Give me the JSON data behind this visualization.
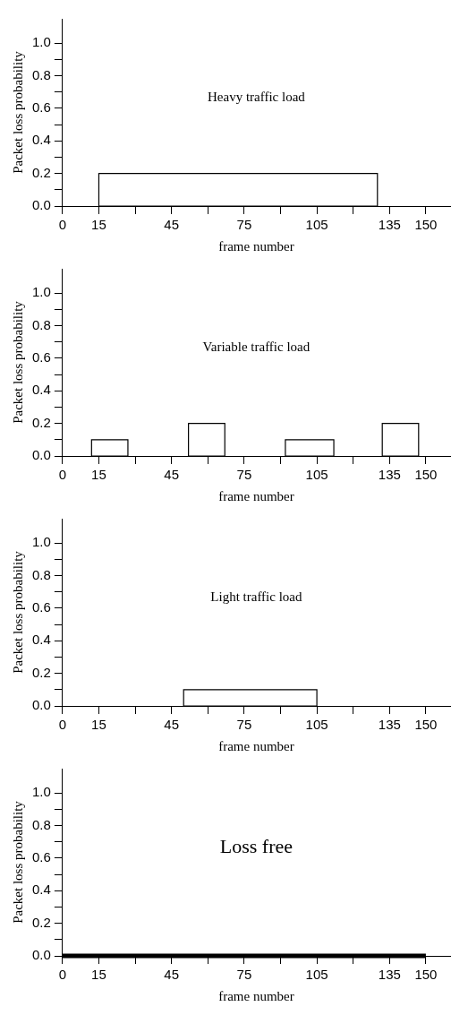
{
  "chart_data": [
    {
      "type": "histogram",
      "title": "Heavy traffic load",
      "xlabel": "frame number",
      "ylabel": "Packet loss probability",
      "color": "#000000",
      "bins": [
        15,
        130
      ],
      "values": [
        0.2
      ],
      "xlim": [
        0,
        160
      ],
      "xticks": [
        0,
        15,
        {
          "value": 30,
          "label": null
        },
        45,
        {
          "value": 60,
          "label": null
        },
        75,
        {
          "value": 90,
          "label": null
        },
        105,
        {
          "value": 120,
          "label": null
        },
        135,
        150
      ],
      "ylim": [
        0,
        1.15
      ],
      "yticks": [
        {
          "value": 0,
          "label": "0.0"
        },
        {
          "value": 0.1,
          "label": null
        },
        {
          "value": 0.2,
          "label": "0.2"
        },
        {
          "value": 0.3,
          "label": null
        },
        {
          "value": 0.4,
          "label": "0.4"
        },
        {
          "value": 0.5,
          "label": null
        },
        {
          "value": 0.6,
          "label": "0.6"
        },
        {
          "value": 0.7,
          "label": null
        },
        {
          "value": 0.8,
          "label": "0.8"
        },
        {
          "value": 0.9,
          "label": null
        },
        {
          "value": 1,
          "label": "1.0"
        }
      ],
      "grid": false,
      "legend": false
    },
    {
      "type": "histogram",
      "title": "Variable traffic load",
      "xlabel": "frame number",
      "ylabel": "Packet loss probability",
      "color": "#000000",
      "bins": [
        12,
        27,
        52,
        67,
        92,
        112,
        132,
        147
      ],
      "values": [
        0.1,
        0,
        0.2,
        0,
        0.1,
        0,
        0.2
      ],
      "xlim": [
        0,
        160
      ],
      "xticks": [
        0,
        15,
        {
          "value": 30,
          "label": null
        },
        45,
        {
          "value": 60,
          "label": null
        },
        75,
        {
          "value": 90,
          "label": null
        },
        105,
        {
          "value": 120,
          "label": null
        },
        135,
        150
      ],
      "ylim": [
        0,
        1.15
      ],
      "yticks": [
        {
          "value": 0,
          "label": "0.0"
        },
        {
          "value": 0.1,
          "label": null
        },
        {
          "value": 0.2,
          "label": "0.2"
        },
        {
          "value": 0.3,
          "label": null
        },
        {
          "value": 0.4,
          "label": "0.4"
        },
        {
          "value": 0.5,
          "label": null
        },
        {
          "value": 0.6,
          "label": "0.6"
        },
        {
          "value": 0.7,
          "label": null
        },
        {
          "value": 0.8,
          "label": "0.8"
        },
        {
          "value": 0.9,
          "label": null
        },
        {
          "value": 1,
          "label": "1.0"
        }
      ],
      "grid": false,
      "legend": false
    },
    {
      "type": "histogram",
      "title": "Light traffic load",
      "xlabel": "frame number",
      "ylabel": "Packet loss probability",
      "color": "#000000",
      "bins": [
        50,
        105
      ],
      "values": [
        0.1
      ],
      "xlim": [
        0,
        160
      ],
      "xticks": [
        0,
        15,
        {
          "value": 30,
          "label": null
        },
        45,
        {
          "value": 60,
          "label": null
        },
        75,
        {
          "value": 90,
          "label": null
        },
        105,
        {
          "value": 120,
          "label": null
        },
        135,
        150
      ],
      "ylim": [
        0,
        1.15
      ],
      "yticks": [
        {
          "value": 0,
          "label": "0.0"
        },
        {
          "value": 0.1,
          "label": null
        },
        {
          "value": 0.2,
          "label": "0.2"
        },
        {
          "value": 0.3,
          "label": null
        },
        {
          "value": 0.4,
          "label": "0.4"
        },
        {
          "value": 0.5,
          "label": null
        },
        {
          "value": 0.6,
          "label": "0.6"
        },
        {
          "value": 0.7,
          "label": null
        },
        {
          "value": 0.8,
          "label": "0.8"
        },
        {
          "value": 0.9,
          "label": null
        },
        {
          "value": 1,
          "label": "1.0"
        }
      ],
      "grid": false,
      "legend": false
    },
    {
      "type": "line",
      "title": "Loss free",
      "xlabel": "frame number",
      "ylabel": "Packet loss probability",
      "color": "#000000",
      "x": [
        0,
        150
      ],
      "values": [
        0,
        0
      ],
      "marker": "none",
      "xlim": [
        0,
        160
      ],
      "xticks": [
        0,
        15,
        {
          "value": 30,
          "label": null
        },
        45,
        {
          "value": 60,
          "label": null
        },
        75,
        {
          "value": 90,
          "label": null
        },
        105,
        {
          "value": 120,
          "label": null
        },
        135,
        150
      ],
      "ylim": [
        0,
        1.15
      ],
      "yticks": [
        {
          "value": 0,
          "label": "0.0"
        },
        {
          "value": 0.1,
          "label": null
        },
        {
          "value": 0.2,
          "label": "0.2"
        },
        {
          "value": 0.3,
          "label": null
        },
        {
          "value": 0.4,
          "label": "0.4"
        },
        {
          "value": 0.5,
          "label": null
        },
        {
          "value": 0.6,
          "label": "0.6"
        },
        {
          "value": 0.7,
          "label": null
        },
        {
          "value": 0.8,
          "label": "0.8"
        },
        {
          "value": 0.9,
          "label": null
        },
        {
          "value": 1,
          "label": "1.0"
        }
      ],
      "grid": false,
      "legend": false
    }
  ]
}
